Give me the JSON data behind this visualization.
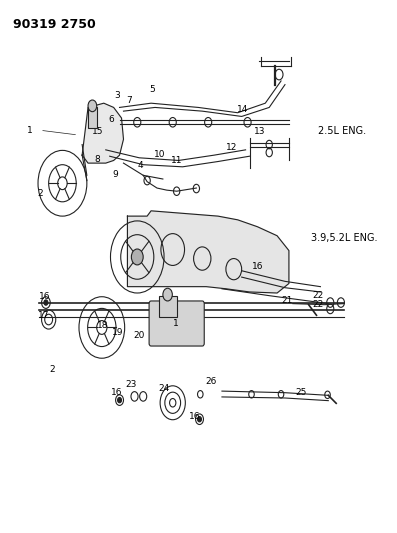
{
  "title": "90319 2750",
  "background_color": "#ffffff",
  "fig_width": 3.97,
  "fig_height": 5.33,
  "dpi": 100,
  "label_2_5L": "2.5L ENG.",
  "label_3_9L": "3.9,5.2L ENG.",
  "line_color": "#222222",
  "line_width": 0.8
}
